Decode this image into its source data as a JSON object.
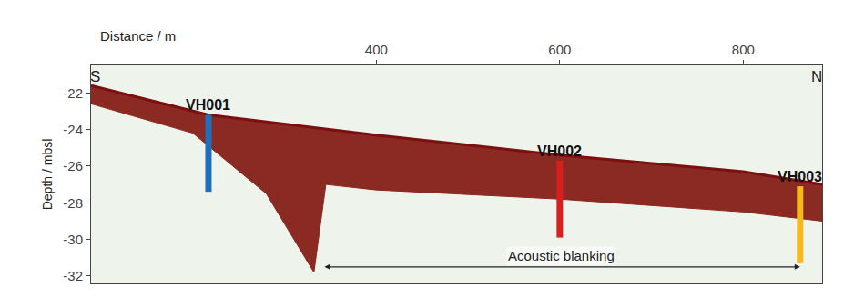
{
  "chart_data": {
    "type": "line",
    "x_label": "Distance / m",
    "y_label": "Depth / mbsl",
    "xlim": [
      89,
      886
    ],
    "xticks": [
      400,
      600,
      800
    ],
    "ylim": [
      -32.4,
      -20.5
    ],
    "yticks": [
      -22,
      -24,
      -26,
      -28,
      -30,
      -32
    ],
    "grid": false,
    "series": [
      {
        "type": "line",
        "color": "#7a1010",
        "x": [
          89,
          217,
          400,
          600,
          800,
          886
        ],
        "values": [
          -21.6,
          -23.2,
          -24.3,
          -25.4,
          -26.3,
          -27.0
        ]
      },
      {
        "type": "area",
        "color": "#8b2a22",
        "x": [
          89,
          200,
          280,
          332,
          345,
          400,
          600,
          800,
          886
        ],
        "values": [
          -22.6,
          -24.2,
          -27.5,
          -31.8,
          -27.0,
          -27.3,
          -27.8,
          -28.5,
          -29.0
        ]
      },
      {
        "type": "core",
        "name": "VH001",
        "color": "#1f6fbf",
        "x": [
          217,
          217
        ],
        "values": [
          -23.2,
          -27.4
        ]
      },
      {
        "type": "core",
        "name": "VH002",
        "color": "#d62020",
        "x": [
          600,
          600
        ],
        "values": [
          -25.7,
          -29.9
        ]
      },
      {
        "type": "core",
        "name": "VH003",
        "color": "#f5b820",
        "x": [
          862,
          862
        ],
        "values": [
          -27.1,
          -31.3
        ]
      }
    ],
    "annotations": [
      {
        "text": "S",
        "x": 93,
        "y": -21.1
      },
      {
        "text": "N",
        "x": 880,
        "y": -21.1
      },
      {
        "text": "Acoustic blanking",
        "x": 602,
        "y": -30.9,
        "arrow_x": [
          342,
          862
        ],
        "arrow_y": -31.5
      }
    ]
  }
}
